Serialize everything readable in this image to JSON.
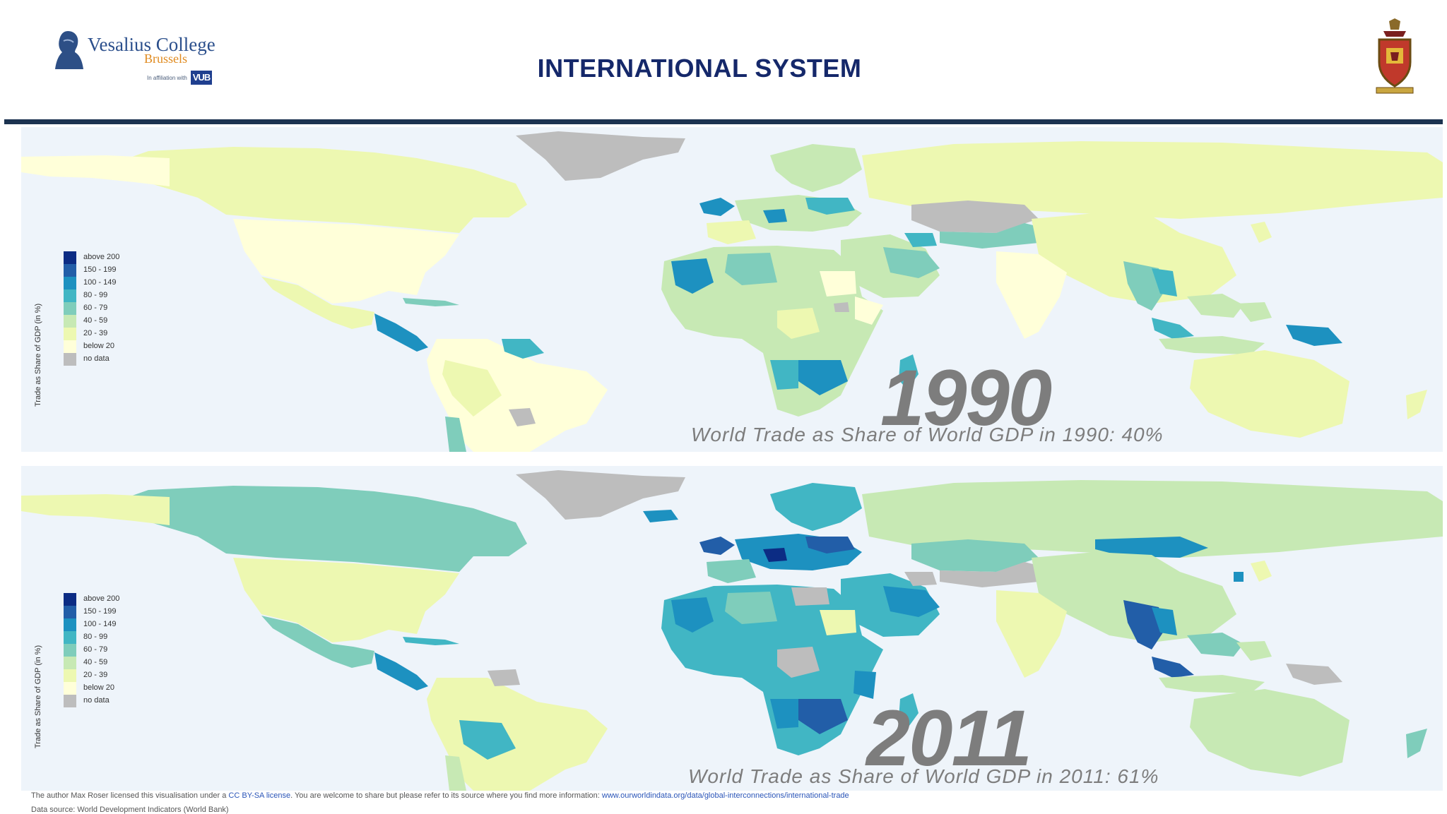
{
  "header": {
    "logo_name": "Vesalius College",
    "logo_city": "Brussels",
    "logo_affiliation": "In affiliation with",
    "logo_vub": "VUB",
    "title": "INTERNATIONAL SYSTEM"
  },
  "maps": [
    {
      "year": "1990",
      "caption": "World Trade as Share of World GDP in 1990: 40%"
    },
    {
      "year": "2011",
      "caption": "World Trade as Share of World GDP in 2011: 61%"
    }
  ],
  "legend": {
    "title": "Trade as Share of GDP (in %)",
    "items": [
      {
        "label": "above 200",
        "color": "#0c2c84"
      },
      {
        "label": "150 - 199",
        "color": "#225ea8"
      },
      {
        "label": "100 - 149",
        "color": "#1d91c0"
      },
      {
        "label": "80 - 99",
        "color": "#41b6c4"
      },
      {
        "label": "60 - 79",
        "color": "#7fcdbb"
      },
      {
        "label": "40 - 59",
        "color": "#c7e9b4"
      },
      {
        "label": "20 - 39",
        "color": "#edf8b1"
      },
      {
        "label": "below 20",
        "color": "#ffffd9"
      },
      {
        "label": "no data",
        "color": "#bdbdbd"
      }
    ]
  },
  "footer": {
    "license_pre": "The author Max Roser licensed this visualisation under a ",
    "license_link": "CC BY-SA license",
    "license_mid": ". You are welcome to share but please refer to its source where you find more information: ",
    "source_link": "www.ourworldindata.org/data/global-interconnections/international-trade",
    "data_source": "Data source: World Development Indicators (World Bank)"
  },
  "colors": {
    "ocean": "#eef4fa",
    "rule": "#1c3350",
    "title": "#15286a"
  }
}
